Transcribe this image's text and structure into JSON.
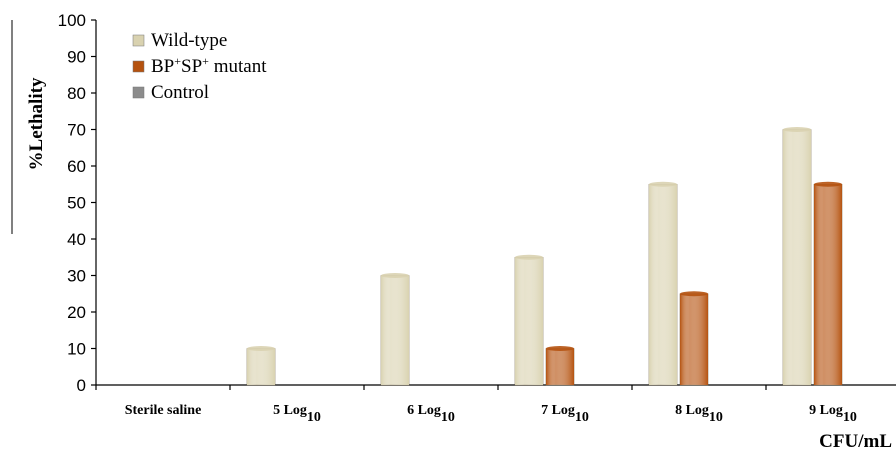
{
  "chart_data": {
    "type": "bar",
    "ylabel": "%Lethality",
    "xlabel": "CFU/mL",
    "ylim": [
      0,
      100
    ],
    "yticks": [
      0,
      10,
      20,
      30,
      40,
      50,
      60,
      70,
      80,
      90,
      100
    ],
    "grid": false,
    "legend_position": "top-left",
    "categories": [
      {
        "text": "Sterile saline",
        "sub": ""
      },
      {
        "text": "5 Log",
        "sub": "10"
      },
      {
        "text": "6 Log",
        "sub": "10"
      },
      {
        "text": "7 Log",
        "sub": "10"
      },
      {
        "text": "8 Log",
        "sub": "10"
      },
      {
        "text": "9 Log",
        "sub": "10"
      }
    ],
    "series": [
      {
        "name": "Wild-type",
        "legend_parts": [
          {
            "t": "Wild-type",
            "sup": false
          }
        ],
        "color": "#d9d2b0",
        "values": [
          0,
          10,
          30,
          35,
          55,
          70
        ]
      },
      {
        "name": "BP+SP+ mutant",
        "legend_parts": [
          {
            "t": "BP",
            "sup": false
          },
          {
            "t": "+",
            "sup": true
          },
          {
            "t": "SP",
            "sup": false
          },
          {
            "t": "+",
            "sup": true
          },
          {
            "t": " mutant",
            "sup": false
          }
        ],
        "color": "#b5520f",
        "values": [
          0,
          0,
          0,
          10,
          25,
          55
        ]
      },
      {
        "name": "Control",
        "legend_parts": [
          {
            "t": "Control",
            "sup": false
          }
        ],
        "color": "#8c8c8c",
        "values": [
          0,
          0,
          0,
          0,
          0,
          0
        ]
      }
    ]
  }
}
